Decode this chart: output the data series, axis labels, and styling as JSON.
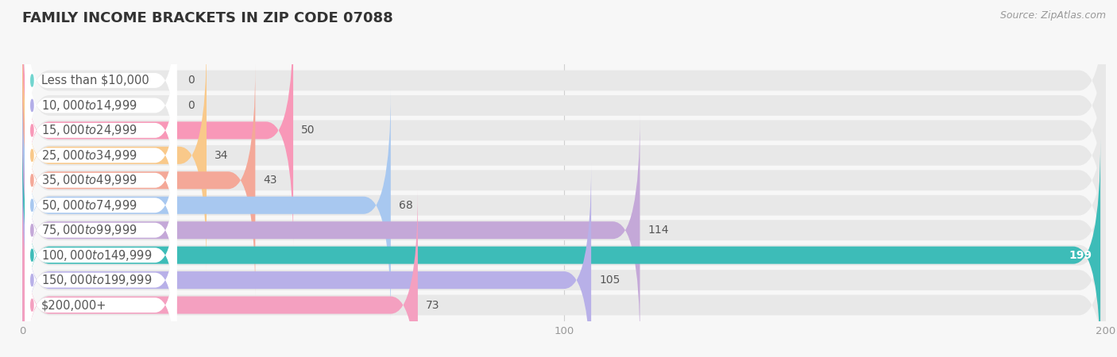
{
  "title": "Family Income Brackets in Zip Code 07088",
  "source": "Source: ZipAtlas.com",
  "categories": [
    "Less than $10,000",
    "$10,000 to $14,999",
    "$15,000 to $24,999",
    "$25,000 to $34,999",
    "$35,000 to $49,999",
    "$50,000 to $74,999",
    "$75,000 to $99,999",
    "$100,000 to $149,999",
    "$150,000 to $199,999",
    "$200,000+"
  ],
  "values": [
    0,
    0,
    50,
    34,
    43,
    68,
    114,
    199,
    105,
    73
  ],
  "bar_colors": [
    "#72d5cf",
    "#b3aee8",
    "#f898b8",
    "#f9c98a",
    "#f4a898",
    "#a8c8f0",
    "#c4a8d8",
    "#3dbcb8",
    "#b8b0e8",
    "#f4a0c0"
  ],
  "xlim_max": 200,
  "xticks": [
    0,
    100,
    200
  ],
  "bg_color": "#f7f7f7",
  "bar_bg_color": "#e8e8e8",
  "bar_row_bg": "#f0f0f0",
  "title_fontsize": 13,
  "label_fontsize": 10.5,
  "value_fontsize": 10,
  "source_fontsize": 9
}
